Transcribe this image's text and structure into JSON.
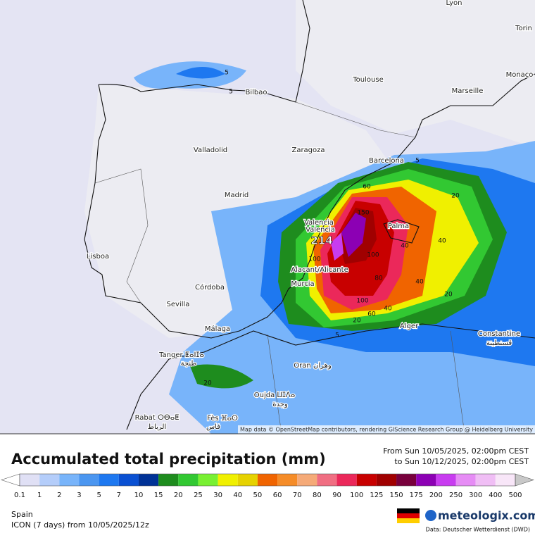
{
  "map": {
    "cities": [
      "Lyon",
      "Torin",
      "Monaco",
      "Toulouse",
      "Marseille",
      "Bilbao",
      "Valladolid",
      "Zaragoza",
      "Barcelona",
      "Madrid",
      "Valencia",
      "Valencia",
      "Palma",
      "Lisboa",
      "Alacant/Alicante",
      "Murcia",
      "Córdoba",
      "Sevilla",
      "Málaga",
      "Alger",
      "Constantine",
      "قسنطينة",
      "Tanger ⵟⴰⵏⵊⴰ",
      "طنجة",
      "Oran وهران",
      "Oujda ⵡⵊⴷⴰ",
      "وجدة",
      "Rabat ⵔⴱⴰⵟ",
      "الرباط",
      "Fès ⴼⴰⵙ",
      "فاس"
    ],
    "contour_labels": [
      5,
      5,
      60,
      150,
      100,
      80,
      40,
      20,
      100,
      60,
      40,
      20,
      40,
      40,
      100,
      20,
      5,
      5,
      20
    ],
    "max_label": "214",
    "attribution": "Map data © OpenStreetMap contributors, rendering GIScience Research Group @ Heidelberg University"
  },
  "legend": {
    "title": "Accumulated total precipitation (mm)",
    "period_from": "From Sun 10/05/2025, 02:00pm CEST",
    "period_to": "to Sun 10/12/2025, 02:00pm CEST",
    "ticks": [
      0.1,
      1,
      2,
      3,
      5,
      7,
      10,
      15,
      20,
      25,
      30,
      40,
      50,
      60,
      70,
      80,
      90,
      100,
      125,
      150,
      175,
      200,
      250,
      300,
      400,
      500
    ],
    "colors": [
      "#ffffff",
      "#e0e0f5",
      "#b4cdfa",
      "#78b4fa",
      "#4b96f0",
      "#1e78f0",
      "#0a50d2",
      "#003296",
      "#1e8c1e",
      "#32c832",
      "#78f032",
      "#f0f000",
      "#e6d200",
      "#f06400",
      "#f58c28",
      "#f5aa78",
      "#f06e82",
      "#eb285a",
      "#c80000",
      "#a00000",
      "#78003c",
      "#8c00b4",
      "#c83cf0",
      "#e68cf5",
      "#f0bef5",
      "#f8e6f8",
      "#c8c8c8"
    ]
  },
  "footer": {
    "region": "Spain",
    "model": "ICON (7 days)  from  10/05/2025/12z",
    "brand": "meteologix.com",
    "source": "Data: Deutscher Wetterdienst (DWD)"
  }
}
